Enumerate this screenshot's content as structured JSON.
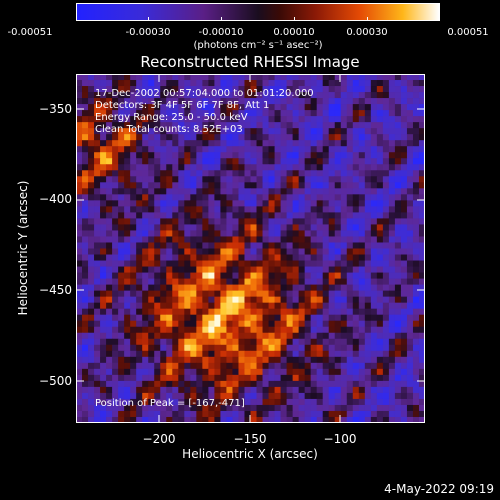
{
  "colorbar": {
    "ticks": [
      "-0.00051",
      "-0.00030",
      "-0.00010",
      "0.00010",
      "0.00030",
      "0.00051"
    ],
    "units": "(photons cm⁻² s⁻¹ asec⁻²)",
    "colors": {
      "low": "#2222ff",
      "mid": "#1a0d1f",
      "high": "#ffffff"
    }
  },
  "title": "Reconstructed RHESSI Image",
  "info": {
    "time_range": "17-Dec-2002 00:57:04.000 to 01:01:20.000",
    "detectors": "Detectors: 3F 4F 5F 6F 7F 8F, Att 1",
    "energy_range": "Energy Range: 25.0 - 50.0 keV",
    "clean": "Clean     Total counts: 8.52E+03",
    "peak": "Position of Peak = [-167,-471]"
  },
  "axes": {
    "xlabel": "Heliocentric X (arcsec)",
    "ylabel": "Heliocentric Y (arcsec)",
    "xticks": [
      "−200",
      "−150",
      "−100"
    ],
    "yticks": [
      "−350",
      "−400",
      "−450",
      "−500"
    ]
  },
  "footer": "4-May-2022 09:19"
}
